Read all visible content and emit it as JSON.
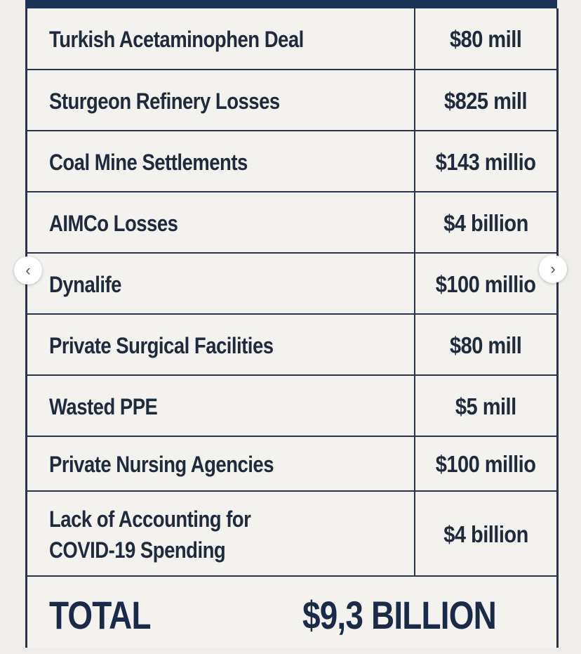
{
  "table": {
    "rows": [
      {
        "label": "Turkish Acetaminophen Deal",
        "value": "$80 mill"
      },
      {
        "label": "Sturgeon Refinery Losses",
        "value": "$825 mill"
      },
      {
        "label": "Coal Mine Settlements",
        "value": "$143 millio"
      },
      {
        "label": "AIMCo Losses",
        "value": "$4 billion"
      },
      {
        "label": "Dynalife",
        "value": "$100 millio"
      },
      {
        "label": "Private Surgical Facilities",
        "value": "$80 mill"
      },
      {
        "label": "Wasted PPE",
        "value": "$5 mill"
      },
      {
        "label": "Private Nursing Agencies",
        "value": "$100 millio"
      },
      {
        "label_line1": "Lack of Accounting for",
        "label_line2": "COVID-19 Spending",
        "value": "$4 billion"
      }
    ],
    "total": {
      "label": "TOTAL",
      "value": "$9,3 BILLION"
    }
  },
  "carousel": {
    "prev_icon": "chevron-left-icon",
    "next_icon": "chevron-right-icon",
    "prev_glyph": "‹",
    "next_glyph": "›"
  },
  "colors": {
    "header_bar": "#1c3358",
    "border": "#2a3547",
    "text": "#1f2a3d",
    "background": "#efeeea"
  }
}
